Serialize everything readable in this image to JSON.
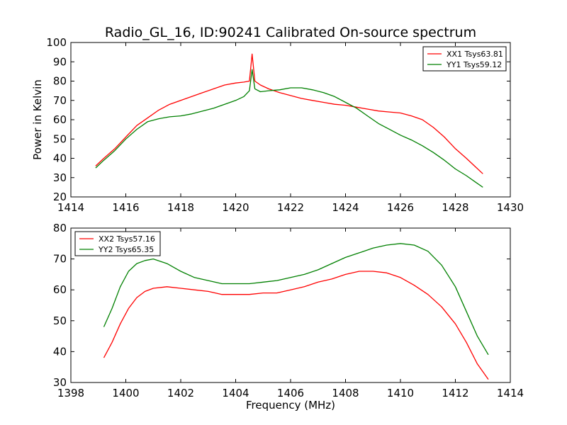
{
  "chart_data": [
    {
      "type": "line",
      "title": "Radio_GL_16, ID:90241 Calibrated On-source spectrum",
      "xlabel": "",
      "ylabel": "Power in Kelvin",
      "xlim": [
        1414,
        1430
      ],
      "ylim": [
        20,
        100
      ],
      "xticks": [
        "1414",
        "1416",
        "1418",
        "1420",
        "1422",
        "1424",
        "1426",
        "1428",
        "1430"
      ],
      "yticks": [
        "20",
        "30",
        "40",
        "50",
        "60",
        "70",
        "80",
        "90",
        "100"
      ],
      "legend_position": "top-right",
      "series": [
        {
          "name": "XX1 Tsys63.81",
          "color": "#ff0000",
          "x": [
            1414.9,
            1415.2,
            1415.6,
            1416.0,
            1416.4,
            1416.8,
            1417.2,
            1417.6,
            1418.0,
            1418.4,
            1418.8,
            1419.2,
            1419.6,
            1420.0,
            1420.3,
            1420.5,
            1420.6,
            1420.7,
            1420.9,
            1421.2,
            1421.6,
            1422.0,
            1422.4,
            1422.8,
            1423.2,
            1423.6,
            1424.0,
            1424.4,
            1424.8,
            1425.2,
            1425.6,
            1426.0,
            1426.4,
            1426.8,
            1427.2,
            1427.6,
            1428.0,
            1428.4,
            1428.7,
            1429.0
          ],
          "y": [
            36,
            40,
            45,
            51,
            57,
            61,
            65,
            68,
            70,
            72,
            74,
            76,
            78,
            79,
            79.5,
            80,
            94,
            80,
            78,
            76,
            74,
            72.5,
            71,
            70,
            69,
            68,
            67.5,
            66.5,
            65.5,
            64.5,
            64,
            63.5,
            62,
            60,
            56,
            51,
            45,
            40,
            36,
            32
          ]
        },
        {
          "name": "YY1 Tsys59.12",
          "color": "#008000",
          "x": [
            1414.9,
            1415.2,
            1415.6,
            1416.0,
            1416.4,
            1416.8,
            1417.2,
            1417.6,
            1418.0,
            1418.4,
            1418.8,
            1419.2,
            1419.6,
            1420.0,
            1420.3,
            1420.5,
            1420.6,
            1420.7,
            1420.9,
            1421.2,
            1421.6,
            1422.0,
            1422.4,
            1422.8,
            1423.2,
            1423.6,
            1424.0,
            1424.4,
            1424.8,
            1425.2,
            1425.6,
            1426.0,
            1426.4,
            1426.8,
            1427.2,
            1427.6,
            1428.0,
            1428.4,
            1428.7,
            1429.0
          ],
          "y": [
            35,
            39,
            44,
            50,
            55,
            59,
            60.5,
            61.5,
            62,
            63,
            64.5,
            66,
            68,
            70,
            72,
            75,
            86,
            76,
            74.5,
            75,
            75.5,
            76.5,
            76.5,
            75.5,
            74,
            72,
            69,
            66,
            62,
            58,
            55,
            52,
            49.5,
            46.5,
            43,
            39,
            34.5,
            31,
            28,
            25
          ]
        }
      ]
    },
    {
      "type": "line",
      "title": "",
      "xlabel": "Frequency (MHz)",
      "ylabel": "",
      "xlim": [
        1398,
        1414
      ],
      "ylim": [
        30,
        80
      ],
      "xticks": [
        "1398",
        "1400",
        "1402",
        "1404",
        "1406",
        "1408",
        "1410",
        "1412",
        "1414"
      ],
      "yticks": [
        "30",
        "40",
        "50",
        "60",
        "70",
        "80"
      ],
      "legend_position": "top-left",
      "series": [
        {
          "name": "XX2 Tsys57.16",
          "color": "#ff0000",
          "x": [
            1399.2,
            1399.5,
            1399.8,
            1400.1,
            1400.4,
            1400.7,
            1401.0,
            1401.5,
            1402.0,
            1402.5,
            1403.0,
            1403.5,
            1404.0,
            1404.5,
            1405.0,
            1405.5,
            1406.0,
            1406.5,
            1407.0,
            1407.5,
            1408.0,
            1408.5,
            1409.0,
            1409.5,
            1410.0,
            1410.5,
            1411.0,
            1411.5,
            1412.0,
            1412.4,
            1412.8,
            1413.2
          ],
          "y": [
            38,
            43,
            49,
            54,
            57.5,
            59.5,
            60.5,
            61,
            60.5,
            60,
            59.5,
            58.5,
            58.5,
            58.5,
            59,
            59,
            60,
            61,
            62.5,
            63.5,
            65,
            66,
            66,
            65.5,
            64,
            61.5,
            58.5,
            54.5,
            49,
            43,
            36,
            31
          ]
        },
        {
          "name": "YY2 Tsys65.35",
          "color": "#008000",
          "x": [
            1399.2,
            1399.5,
            1399.8,
            1400.1,
            1400.4,
            1400.7,
            1401.0,
            1401.5,
            1402.0,
            1402.5,
            1403.0,
            1403.5,
            1404.0,
            1404.5,
            1405.0,
            1405.5,
            1406.0,
            1406.5,
            1407.0,
            1407.5,
            1408.0,
            1408.5,
            1409.0,
            1409.5,
            1410.0,
            1410.5,
            1411.0,
            1411.5,
            1412.0,
            1412.4,
            1412.8,
            1413.2
          ],
          "y": [
            48,
            54,
            61,
            66,
            68.5,
            69.5,
            70,
            68.5,
            66,
            64,
            63,
            62,
            62,
            62,
            62.5,
            63,
            64,
            65,
            66.5,
            68.5,
            70.5,
            72,
            73.5,
            74.5,
            75,
            74.5,
            72.5,
            68,
            61,
            53,
            45,
            39
          ]
        }
      ]
    }
  ]
}
